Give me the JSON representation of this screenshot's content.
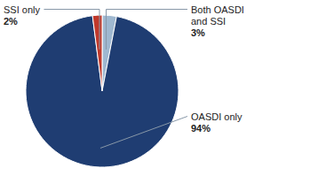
{
  "chart_data": {
    "type": "pie",
    "categories": [
      "Both OASDI\nand SSI",
      "OASDI only",
      "SSI only"
    ],
    "values": [
      3,
      94,
      2
    ],
    "value_labels": [
      "3%",
      "94%",
      "2%"
    ],
    "colors": [
      "#9fb8d0",
      "#1f3d72",
      "#c0392b"
    ],
    "data_labels": true
  }
}
